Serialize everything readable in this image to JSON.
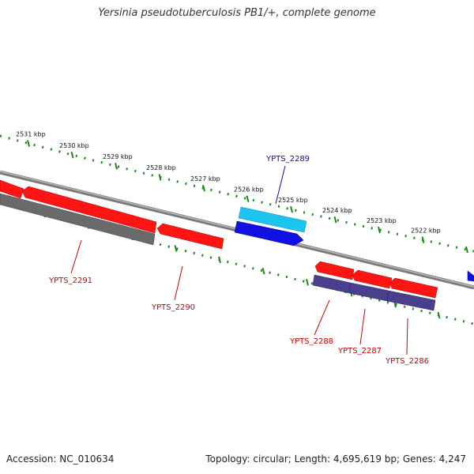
{
  "title": "Yersinia pseudotuberculosis PB1/+, complete genome",
  "footer": {
    "accession": "Accession: NC_010634",
    "summary": "Topology: circular; Length: 4,695,619 bp; Genes: 4,247"
  },
  "colors": {
    "background": "#ffffff",
    "backbone": "#888888",
    "scale_ticks": "#1a8a1a",
    "forward_gene": "#ff1414",
    "reverse_gene": "#ff1414",
    "pseudo_gene": "#666666",
    "cds_forward": "#1010e0",
    "rna": "#1cc4f0",
    "cds_reverse": "#4a3f8c",
    "label_red": "#cc0000",
    "label_blue": "#1010a0"
  },
  "scale": {
    "unit": "kbp",
    "ticks": [
      {
        "label": "2531 kbp"
      },
      {
        "label": "2530 kbp"
      },
      {
        "label": "2529 kbp"
      },
      {
        "label": "2528 kbp"
      },
      {
        "label": "2527 kbp"
      },
      {
        "label": "2526 kbp"
      },
      {
        "label": "2525 kbp"
      },
      {
        "label": "2524 kbp"
      },
      {
        "label": "2523 kbp"
      },
      {
        "label": "2522 kbp"
      }
    ]
  },
  "gene_labels": [
    {
      "name": "YPTS_2291"
    },
    {
      "name": "YPTS_2290"
    },
    {
      "name": "YPTS_2289"
    },
    {
      "name": "YPTS_2288"
    },
    {
      "name": "YPTS_2287"
    },
    {
      "name": "YPTS_2286"
    }
  ]
}
